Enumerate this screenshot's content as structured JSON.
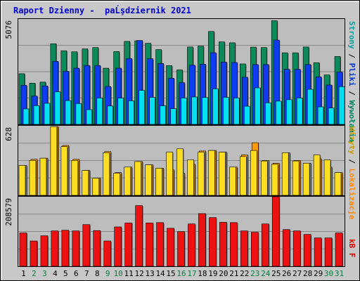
{
  "title": "Raport Dzienny -  paĹşdziernik 2021",
  "colors": {
    "background": "#c8c8c8",
    "plot_background": "#bdbdbd",
    "title": "#0000cc",
    "visits_fill": "#0c8a5c",
    "pages_fill": "#0e3cf0",
    "files_fill": "#00e0f0",
    "sites_fill": "#ff9900",
    "sites2_fill": "#ffdd22",
    "kb_fill": "#ee1111",
    "weekend_label": "#008040",
    "weekday_label": "#000000"
  },
  "right_labels": {
    "top": [
      {
        "text": "Wywołania",
        "color": "#008060"
      },
      {
        "text": " / ",
        "color": "#000000"
      },
      {
        "text": "Pliki",
        "color": "#0033cc"
      },
      {
        "text": " / ",
        "color": "#000000"
      },
      {
        "text": "Strony",
        "color": "#00a0a0"
      }
    ],
    "middle": [
      {
        "text": "Lokalizacje",
        "color": "#ff8800"
      },
      {
        "text": " / ",
        "color": "#000000"
      },
      {
        "text": "Wizyty",
        "color": "#cc9900"
      }
    ],
    "bottom": [
      {
        "text": "kB F",
        "color": "#dd0000"
      }
    ]
  },
  "chart_data": [
    {
      "type": "bar",
      "panel": "top",
      "y_label": "5076",
      "ylim": [
        0,
        5076
      ],
      "categories": [
        "1",
        "2",
        "3",
        "4",
        "5",
        "6",
        "7",
        "8",
        "9",
        "10",
        "11",
        "12",
        "13",
        "14",
        "15",
        "16",
        "17",
        "18",
        "19",
        "20",
        "21",
        "22",
        "23",
        "24",
        "25",
        "26",
        "27",
        "28",
        "29",
        "30",
        "31"
      ],
      "series": [
        {
          "name": "Wywołania",
          "values": [
            2440,
            1985,
            2035,
            3883,
            3545,
            3495,
            3635,
            3701,
            2706,
            3510,
            3995,
            4026,
            3904,
            3602,
            2830,
            2622,
            3726,
            3768,
            4476,
            3974,
            3929,
            2911,
            3720,
            3700,
            4993,
            3447,
            3447,
            3726,
            2970,
            2380,
            3270
          ]
        },
        {
          "name": "Pliki",
          "values": [
            1880,
            1365,
            1853,
            3037,
            2555,
            2706,
            2835,
            2835,
            1825,
            2707,
            3172,
            4040,
            3160,
            2935,
            2220,
            2010,
            2850,
            2900,
            3450,
            3000,
            2980,
            2270,
            2880,
            2880,
            4060,
            2650,
            2650,
            2880,
            2285,
            1894,
            2520
          ]
        },
        {
          "name": "Strony",
          "values": [
            745,
            900,
            1015,
            1565,
            1145,
            1000,
            710,
            1270,
            885,
            1265,
            1135,
            1635,
            1300,
            895,
            755,
            1270,
            1320,
            1295,
            1710,
            1300,
            1270,
            875,
            1760,
            1040,
            1120,
            1190,
            1270,
            1690,
            845,
            785,
            1815
          ]
        }
      ]
    },
    {
      "type": "bar",
      "panel": "middle",
      "y_label": "628",
      "ylim": [
        0,
        628
      ],
      "series": [
        {
          "name": "Wizyty",
          "values": [
            270,
            325,
            335,
            620,
            450,
            325,
            225,
            155,
            395,
            205,
            255,
            305,
            275,
            245,
            230,
            200,
            280,
            400,
            405,
            390,
            255,
            365,
            475,
            315,
            290,
            385,
            315,
            290,
            330,
            255,
            205
          ]
        },
        {
          "name": "Lokalizacje",
          "values": [
            270,
            315,
            335,
            620,
            440,
            315,
            225,
            155,
            385,
            200,
            255,
            305,
            275,
            245,
            390,
            420,
            320,
            390,
            405,
            390,
            255,
            350,
            405,
            310,
            280,
            385,
            310,
            290,
            365,
            320,
            205
          ]
        }
      ]
    },
    {
      "type": "bar",
      "panel": "bottom",
      "y_label": "208579",
      "ylim": [
        0,
        208579
      ],
      "series": [
        {
          "name": "kB F",
          "values": [
            100000,
            75800,
            91500,
            106000,
            108000,
            106000,
            125000,
            107000,
            75800,
            118000,
            130000,
            182000,
            130000,
            131000,
            114000,
            104000,
            127000,
            158000,
            146000,
            132000,
            131000,
            106000,
            102000,
            127000,
            212000,
            110000,
            106000,
            95600,
            85100,
            85100,
            100000
          ]
        }
      ]
    }
  ]
}
